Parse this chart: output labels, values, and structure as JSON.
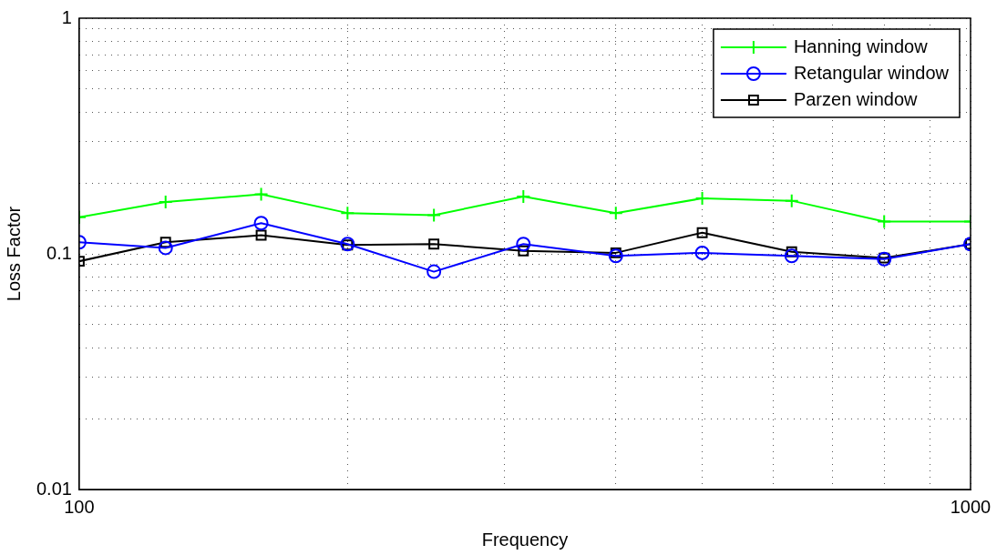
{
  "chart_data": {
    "type": "line",
    "xlabel": "Frequency",
    "ylabel": "Loss Factor",
    "x": [
      100,
      125,
      160,
      200,
      250,
      315,
      400,
      500,
      630,
      800,
      1000
    ],
    "series": [
      {
        "name": "Hanning window",
        "color": "#00ff00",
        "marker": "cross",
        "values": [
          0.143,
          0.166,
          0.179,
          0.149,
          0.146,
          0.175,
          0.149,
          0.172,
          0.168,
          0.137,
          0.137
        ]
      },
      {
        "name": "Retangular window",
        "color": "#0000ff",
        "marker": "circle",
        "values": [
          0.112,
          0.106,
          0.135,
          0.11,
          0.084,
          0.11,
          0.098,
          0.101,
          0.098,
          0.095,
          0.11
        ]
      },
      {
        "name": "Parzen window",
        "color": "#000000",
        "marker": "square",
        "values": [
          0.093,
          0.112,
          0.12,
          0.109,
          0.11,
          0.103,
          0.101,
          0.123,
          0.102,
          0.096,
          0.11
        ]
      }
    ],
    "log": "xy",
    "xlim": [
      100,
      1000
    ],
    "xticks": [
      100,
      {
        "value": 200,
        "label": null
      },
      {
        "value": 300,
        "label": null
      },
      {
        "value": 400,
        "label": null
      },
      {
        "value": 500,
        "label": null
      },
      {
        "value": 600,
        "label": null
      },
      {
        "value": 700,
        "label": null
      },
      {
        "value": 800,
        "label": null
      },
      {
        "value": 900,
        "label": null
      },
      1000
    ],
    "ylim": [
      0.01,
      1
    ],
    "yticks": [
      0.01,
      {
        "value": 0.02,
        "label": null
      },
      {
        "value": 0.03,
        "label": null
      },
      {
        "value": 0.04,
        "label": null
      },
      {
        "value": 0.05,
        "label": null
      },
      {
        "value": 0.06,
        "label": null
      },
      {
        "value": 0.07,
        "label": null
      },
      {
        "value": 0.08,
        "label": null
      },
      {
        "value": 0.09,
        "label": null
      },
      0.1,
      {
        "value": 0.2,
        "label": null
      },
      {
        "value": 0.3,
        "label": null
      },
      {
        "value": 0.4,
        "label": null
      },
      {
        "value": 0.5,
        "label": null
      },
      {
        "value": 0.6,
        "label": null
      },
      {
        "value": 0.7,
        "label": null
      },
      {
        "value": 0.8,
        "label": null
      },
      {
        "value": 0.9,
        "label": null
      },
      1
    ],
    "grid": true,
    "legend": "top right",
    "line_style": "solid"
  }
}
